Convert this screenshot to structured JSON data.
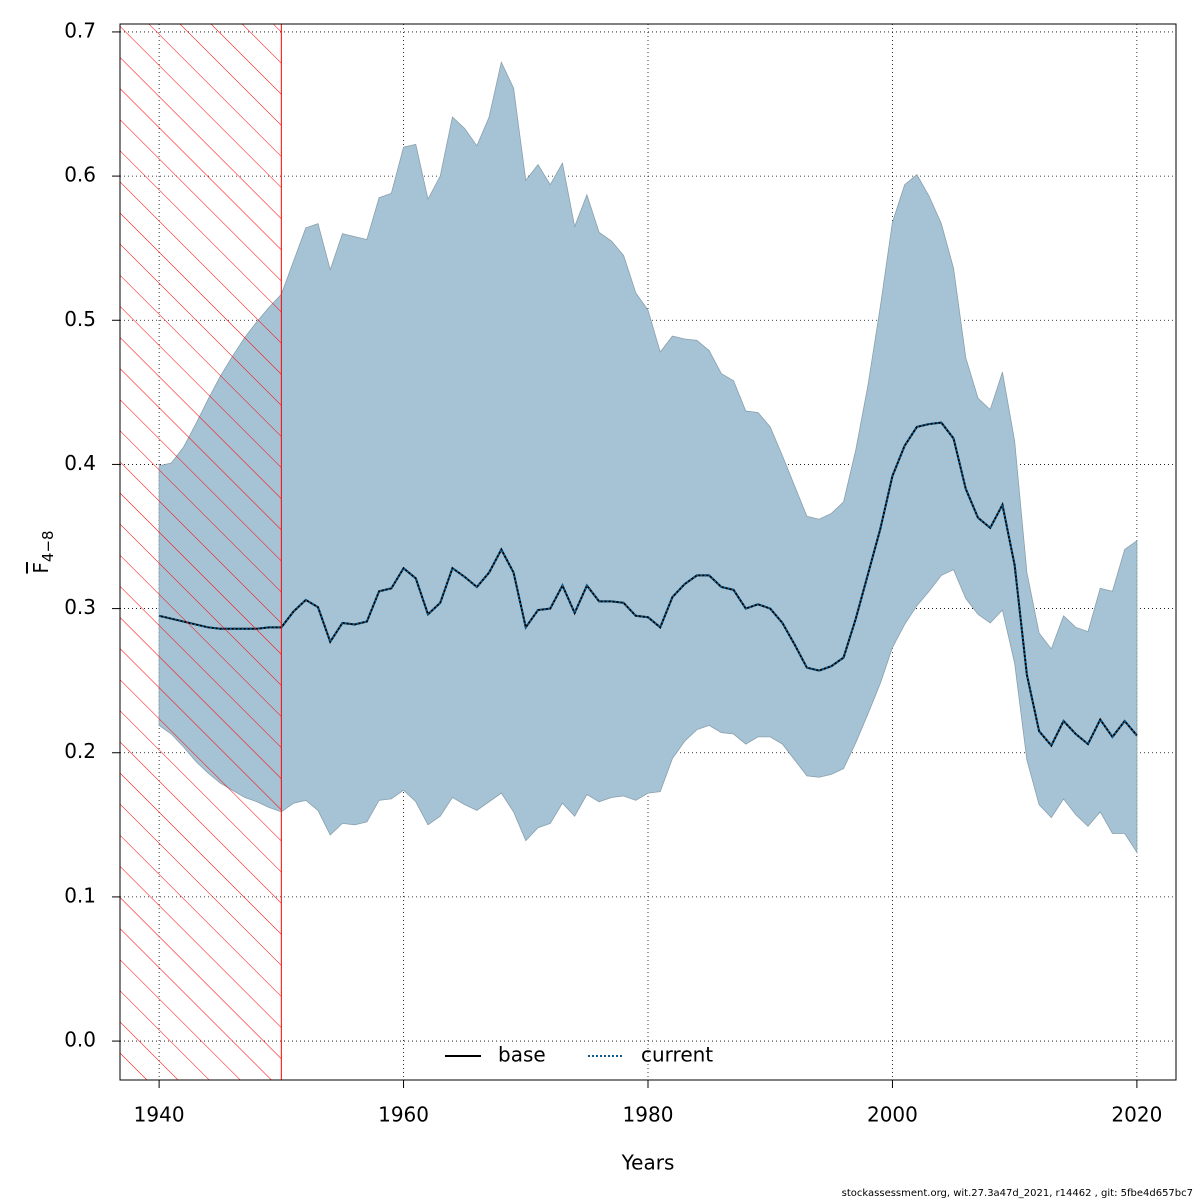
{
  "chart_data": {
    "type": "line",
    "xlabel": "Years",
    "ylabel": "F",
    "ylabel_subscript": "4−8",
    "footer": "stockassessment.org, wit.27.3a47d_2021, r14462 , git: 5fbe4d657bc7",
    "x": [
      1940,
      1941,
      1942,
      1943,
      1944,
      1945,
      1946,
      1947,
      1948,
      1949,
      1950,
      1951,
      1952,
      1953,
      1954,
      1955,
      1956,
      1957,
      1958,
      1959,
      1960,
      1961,
      1962,
      1963,
      1964,
      1965,
      1966,
      1967,
      1968,
      1969,
      1970,
      1971,
      1972,
      1973,
      1974,
      1975,
      1976,
      1977,
      1978,
      1979,
      1980,
      1981,
      1982,
      1983,
      1984,
      1985,
      1986,
      1987,
      1988,
      1989,
      1990,
      1991,
      1992,
      1993,
      1994,
      1995,
      1996,
      1997,
      1998,
      1999,
      2000,
      2001,
      2002,
      2003,
      2004,
      2005,
      2006,
      2007,
      2008,
      2009,
      2010,
      2011,
      2012,
      2013,
      2014,
      2015,
      2016,
      2017,
      2018,
      2019,
      2020
    ],
    "series": [
      {
        "name": "base",
        "color": "#000000",
        "dash": "solid",
        "values": [
          0.295,
          0.293,
          0.291,
          0.289,
          0.287,
          0.286,
          0.286,
          0.286,
          0.286,
          0.287,
          0.287,
          0.298,
          0.306,
          0.301,
          0.277,
          0.29,
          0.289,
          0.291,
          0.312,
          0.314,
          0.328,
          0.321,
          0.296,
          0.304,
          0.328,
          0.322,
          0.315,
          0.325,
          0.341,
          0.325,
          0.287,
          0.299,
          0.3,
          0.316,
          0.297,
          0.316,
          0.305,
          0.305,
          0.304,
          0.295,
          0.294,
          0.287,
          0.308,
          0.317,
          0.323,
          0.323,
          0.315,
          0.313,
          0.3,
          0.303,
          0.3,
          0.29,
          0.275,
          0.259,
          0.257,
          0.26,
          0.266,
          0.293,
          0.324,
          0.355,
          0.392,
          0.413,
          0.426,
          0.428,
          0.429,
          0.418,
          0.383,
          0.363,
          0.356,
          0.372,
          0.33,
          0.254,
          0.215,
          0.205,
          0.222,
          0.213,
          0.206,
          0.223,
          0.211,
          0.222,
          0.212
        ]
      },
      {
        "name": "current",
        "color": "#0b5b8f",
        "dash": "dotted",
        "values": [
          0.295,
          0.293,
          0.291,
          0.289,
          0.287,
          0.286,
          0.286,
          0.286,
          0.286,
          0.287,
          0.287,
          0.298,
          0.306,
          0.301,
          0.277,
          0.29,
          0.289,
          0.291,
          0.312,
          0.314,
          0.328,
          0.321,
          0.296,
          0.304,
          0.328,
          0.322,
          0.315,
          0.325,
          0.341,
          0.325,
          0.287,
          0.299,
          0.3,
          0.316,
          0.297,
          0.316,
          0.305,
          0.305,
          0.304,
          0.295,
          0.294,
          0.287,
          0.308,
          0.317,
          0.323,
          0.323,
          0.315,
          0.313,
          0.3,
          0.303,
          0.3,
          0.29,
          0.275,
          0.259,
          0.257,
          0.26,
          0.266,
          0.293,
          0.324,
          0.355,
          0.392,
          0.413,
          0.426,
          0.428,
          0.429,
          0.418,
          0.383,
          0.363,
          0.356,
          0.372,
          0.33,
          0.254,
          0.215,
          0.205,
          0.222,
          0.213,
          0.206,
          0.223,
          0.211,
          0.222,
          0.212
        ]
      }
    ],
    "band": {
      "color": "#a5c3d4",
      "upper": [
        0.399,
        0.401,
        0.412,
        0.428,
        0.445,
        0.461,
        0.475,
        0.488,
        0.499,
        0.509,
        0.518,
        0.541,
        0.564,
        0.567,
        0.535,
        0.56,
        0.558,
        0.556,
        0.585,
        0.588,
        0.62,
        0.622,
        0.584,
        0.6,
        0.641,
        0.633,
        0.621,
        0.641,
        0.679,
        0.661,
        0.597,
        0.608,
        0.594,
        0.609,
        0.565,
        0.587,
        0.561,
        0.555,
        0.545,
        0.519,
        0.507,
        0.478,
        0.489,
        0.487,
        0.486,
        0.479,
        0.463,
        0.458,
        0.437,
        0.436,
        0.426,
        0.406,
        0.385,
        0.364,
        0.362,
        0.366,
        0.374,
        0.41,
        0.455,
        0.509,
        0.568,
        0.594,
        0.601,
        0.586,
        0.567,
        0.536,
        0.474,
        0.446,
        0.438,
        0.464,
        0.416,
        0.325,
        0.283,
        0.272,
        0.295,
        0.287,
        0.284,
        0.314,
        0.312,
        0.341,
        0.347
      ],
      "lower": [
        0.219,
        0.213,
        0.204,
        0.194,
        0.186,
        0.179,
        0.174,
        0.169,
        0.166,
        0.162,
        0.159,
        0.165,
        0.167,
        0.16,
        0.143,
        0.151,
        0.15,
        0.152,
        0.167,
        0.168,
        0.174,
        0.166,
        0.15,
        0.156,
        0.169,
        0.164,
        0.16,
        0.166,
        0.172,
        0.159,
        0.139,
        0.148,
        0.151,
        0.165,
        0.156,
        0.171,
        0.166,
        0.169,
        0.17,
        0.167,
        0.172,
        0.173,
        0.196,
        0.208,
        0.216,
        0.219,
        0.214,
        0.213,
        0.206,
        0.211,
        0.211,
        0.206,
        0.195,
        0.184,
        0.183,
        0.185,
        0.189,
        0.207,
        0.227,
        0.248,
        0.273,
        0.289,
        0.302,
        0.312,
        0.323,
        0.327,
        0.307,
        0.296,
        0.29,
        0.299,
        0.262,
        0.195,
        0.164,
        0.155,
        0.168,
        0.157,
        0.149,
        0.159,
        0.144,
        0.144,
        0.131
      ]
    },
    "hatch_until": 1950,
    "hatch_color": "#ff0000",
    "xlim": [
      1936.8,
      2023.2
    ],
    "ylim": [
      -0.027,
      0.7055
    ],
    "xticks": [
      1940,
      1960,
      1980,
      2000,
      2020
    ],
    "yticks": [
      {
        "value": 0,
        "label": "0.0"
      },
      0.1,
      0.2,
      0.3,
      0.4,
      0.5,
      0.6,
      0.7
    ],
    "grid": true,
    "legend": "bottom"
  }
}
